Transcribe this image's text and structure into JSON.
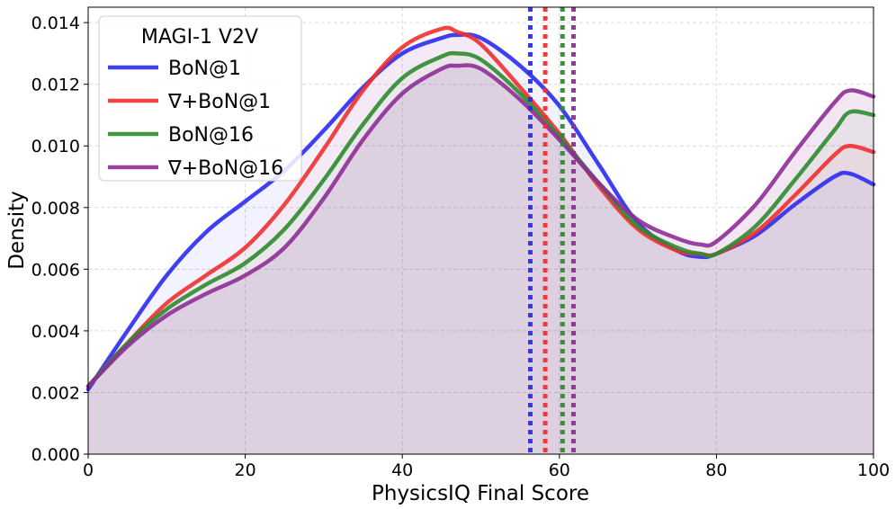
{
  "chart_data": {
    "type": "line",
    "subtype": "kde-density",
    "xlabel": "PhysicsIQ Final Score",
    "ylabel": "Density",
    "xlim": [
      0,
      100
    ],
    "ylim": [
      0,
      0.0145
    ],
    "xticks": [
      0,
      20,
      40,
      60,
      80,
      100
    ],
    "yticks": [
      0.0,
      0.002,
      0.004,
      0.006,
      0.008,
      0.01,
      0.012,
      0.014
    ],
    "xtick_labels": [
      "0",
      "20",
      "40",
      "60",
      "80",
      "100"
    ],
    "ytick_labels": [
      "0.000",
      "0.002",
      "0.004",
      "0.006",
      "0.008",
      "0.010",
      "0.012",
      "0.014"
    ],
    "grid": true,
    "legend_title": "MAGI-1 V2V",
    "legend_position": "upper-left",
    "x": [
      0,
      5,
      10,
      15,
      20,
      25,
      30,
      35,
      40,
      45,
      47,
      50,
      55,
      60,
      65,
      70,
      75,
      78,
      80,
      85,
      90,
      95,
      97,
      100
    ],
    "series": [
      {
        "name": "BoN@1",
        "color": "#2b2bf0",
        "fill": "rgba(80,80,255,0.07)",
        "mean": 56.3,
        "values": [
          0.0021,
          0.004,
          0.0058,
          0.0072,
          0.0082,
          0.0092,
          0.0105,
          0.0119,
          0.013,
          0.0135,
          0.0136,
          0.0135,
          0.0126,
          0.0113,
          0.0094,
          0.0075,
          0.0066,
          0.0064,
          0.0065,
          0.0071,
          0.0081,
          0.009,
          0.0091,
          0.00875
        ]
      },
      {
        "name": "∇+BoN@1",
        "color": "#f03030",
        "fill": "rgba(255,80,80,0.05)",
        "mean": 58.2,
        "values": [
          0.0022,
          0.0036,
          0.0049,
          0.0058,
          0.0067,
          0.0081,
          0.0099,
          0.0118,
          0.0132,
          0.0138,
          0.0137,
          0.0133,
          0.0119,
          0.0104,
          0.0087,
          0.0073,
          0.0066,
          0.0065,
          0.0065,
          0.0072,
          0.0084,
          0.0097,
          0.01,
          0.0098
        ]
      },
      {
        "name": "BoN@16",
        "color": "#2e8b2e",
        "fill": "rgba(60,160,60,0.05)",
        "mean": 60.4,
        "values": [
          0.0022,
          0.0036,
          0.0047,
          0.0055,
          0.0062,
          0.0073,
          0.0089,
          0.0107,
          0.0122,
          0.0129,
          0.013,
          0.0128,
          0.0117,
          0.0103,
          0.0088,
          0.0074,
          0.0067,
          0.0065,
          0.0065,
          0.0074,
          0.0089,
          0.0105,
          0.0111,
          0.011
        ]
      },
      {
        "name": "∇+BoN@16",
        "color": "#8e2e96",
        "fill": "rgba(142,46,150,0.12)",
        "mean": 61.8,
        "values": [
          0.0022,
          0.0035,
          0.0045,
          0.0052,
          0.0058,
          0.0067,
          0.0083,
          0.0102,
          0.0117,
          0.0125,
          0.0126,
          0.0125,
          0.0115,
          0.0102,
          0.0088,
          0.0076,
          0.007,
          0.0068,
          0.0069,
          0.0081,
          0.0098,
          0.0114,
          0.0118,
          0.0116
        ]
      }
    ]
  }
}
